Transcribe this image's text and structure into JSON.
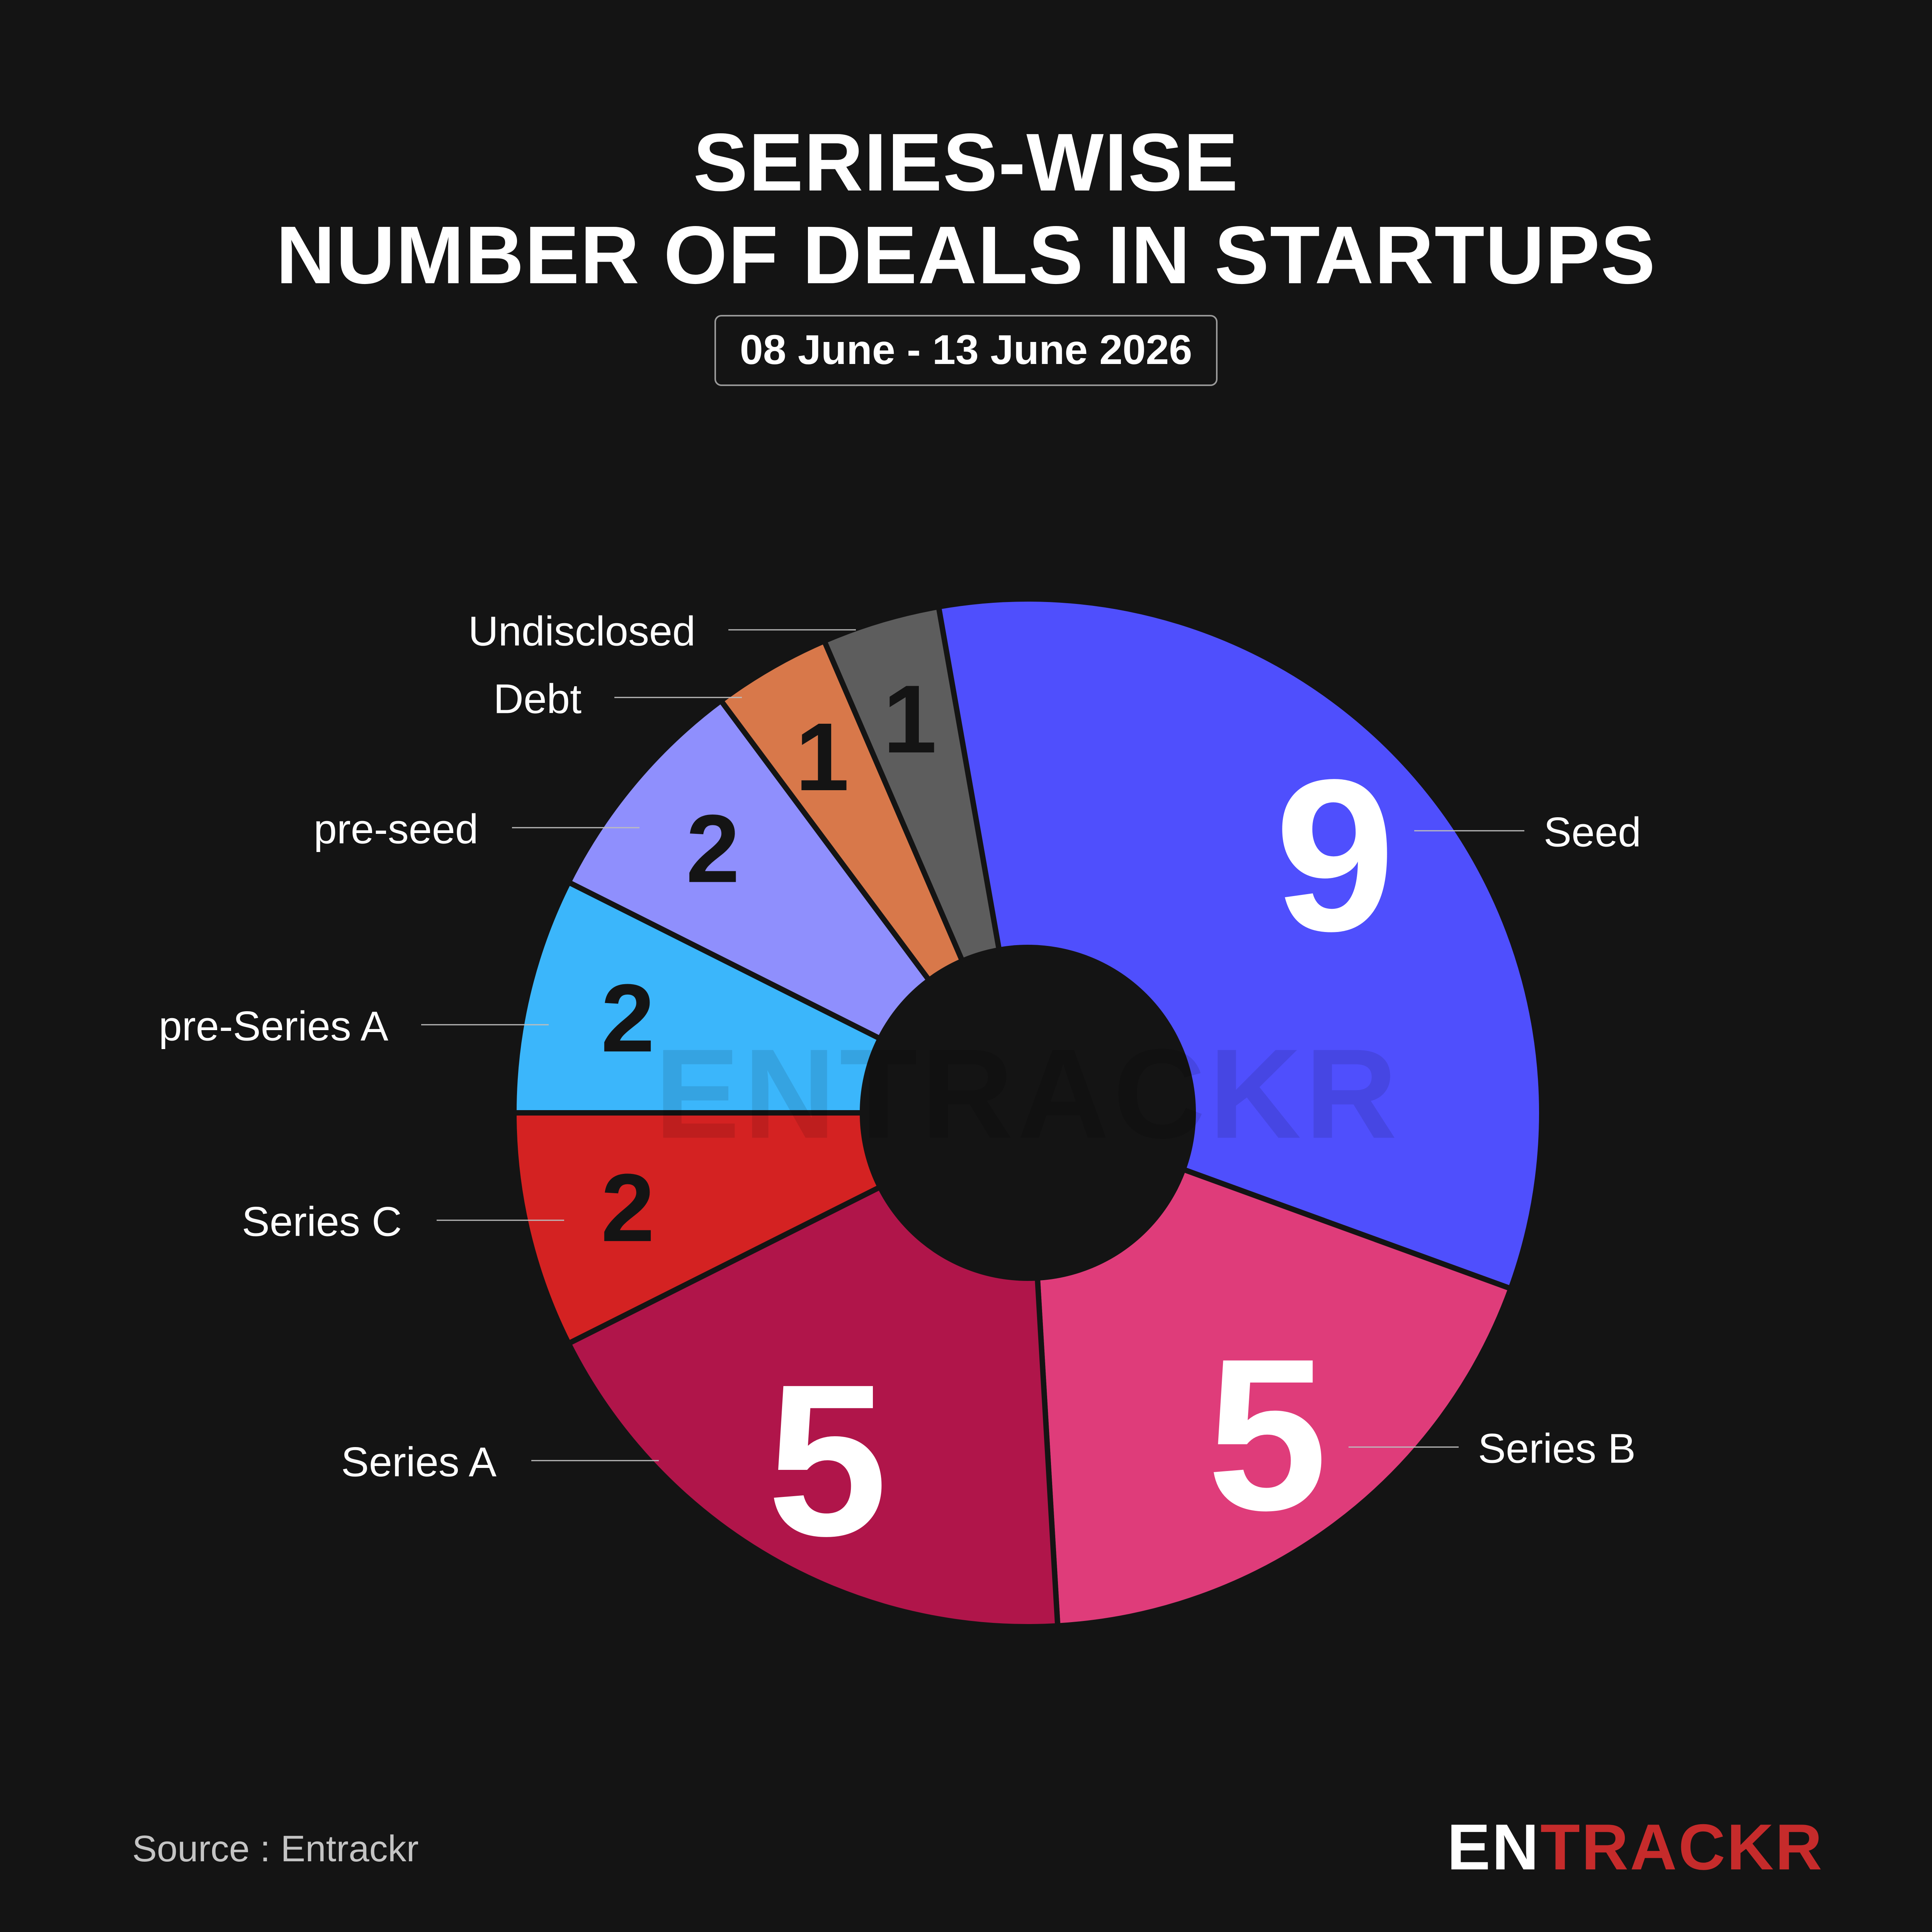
{
  "header": {
    "title_line1": "SERIES-WISE",
    "title_line2": "NUMBER OF DEALS IN STARTUPS",
    "date_range": "08 June - 13 June 2026"
  },
  "footer": {
    "source": "Source : Entrackr",
    "brand_part1": "EN",
    "brand_part2": "TRACKR"
  },
  "watermark": "ENTRACKR",
  "chart_data": {
    "type": "pie",
    "style": "donut",
    "slices": [
      {
        "label": "Seed",
        "value": 9,
        "color": "#4f4ffd",
        "value_color": "#ffffff"
      },
      {
        "label": "Series B",
        "value": 5,
        "color": "#df3c7a",
        "value_color": "#ffffff"
      },
      {
        "label": "Series A",
        "value": 5,
        "color": "#b0154a",
        "value_color": "#ffffff"
      },
      {
        "label": "Series C",
        "value": 2,
        "color": "#d42222",
        "value_color": "#141414"
      },
      {
        "label": "pre-Series A",
        "value": 2,
        "color": "#3bb6fb",
        "value_color": "#141414"
      },
      {
        "label": "pre-seed",
        "value": 2,
        "color": "#8f8ffd",
        "value_color": "#141414"
      },
      {
        "label": "Debt",
        "value": 1,
        "color": "#d8784a",
        "value_color": "#141414"
      },
      {
        "label": "Undisclosed",
        "value": 1,
        "color": "#5d5d5d",
        "value_color": "#141414"
      }
    ]
  }
}
